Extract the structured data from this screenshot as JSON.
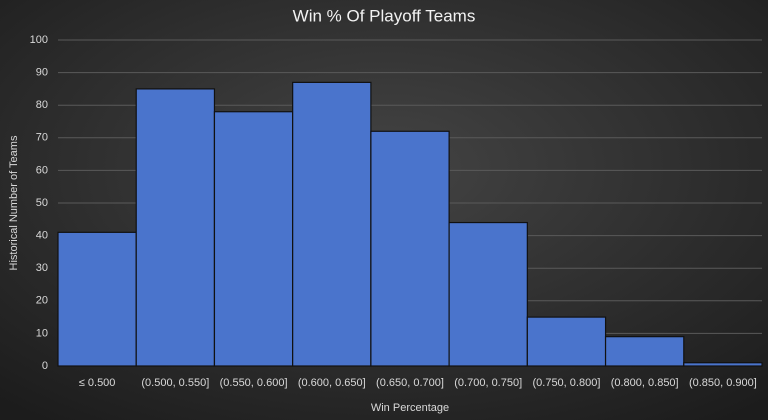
{
  "chart_data": {
    "type": "bar",
    "title": "Win % Of Playoff Teams",
    "x_label": "Win Percentage",
    "y_label": "Historical Number of Teams",
    "categories": [
      "≤ 0.500",
      "(0.500, 0.550]",
      "(0.550, 0.600]",
      "(0.600, 0.650]",
      "(0.650, 0.700]",
      "(0.700, 0.750]",
      "(0.750, 0.800]",
      "(0.800, 0.850]",
      "(0.850, 0.900]"
    ],
    "values": [
      41,
      85,
      78,
      87,
      72,
      44,
      15,
      9,
      1
    ],
    "color": "#4a74cc",
    "ylim": [
      0,
      100
    ],
    "yticks": [
      0,
      10,
      20,
      30,
      40,
      50,
      60,
      70,
      80,
      90,
      100
    ],
    "grid": true
  }
}
